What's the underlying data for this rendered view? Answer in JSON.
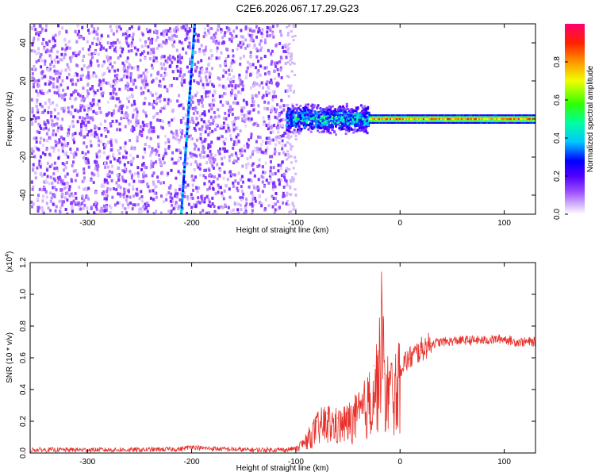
{
  "title": "C2E6.2026.067.17.29.G23",
  "chart_data": [
    {
      "type": "heatmap",
      "name": "spectrogram",
      "xlabel": "Height of straight line (km)",
      "ylabel": "Frequency (Hz)",
      "xlim": [
        -355,
        130
      ],
      "ylim": [
        -50,
        50
      ],
      "x_ticks": [
        -300,
        -200,
        -100,
        0,
        100
      ],
      "x_tick_labels": [
        "-300",
        "-200",
        "-100",
        "0",
        "100"
      ],
      "y_ticks": [
        -40,
        -20,
        0,
        20,
        40
      ],
      "y_tick_labels": [
        "-40",
        "-20",
        "0",
        "20",
        "40"
      ],
      "colorbar": {
        "label": "Normalized spectral amplitude",
        "range": [
          0,
          1
        ],
        "ticks": [
          0.0,
          0.2,
          0.4,
          0.6,
          0.8
        ],
        "tick_labels": [
          "0.0",
          "0.2",
          "0.4",
          "0.6",
          "0.8"
        ]
      },
      "regions": [
        {
          "kind": "noise",
          "x_range": [
            -355,
            -110
          ],
          "freq_range": [
            -50,
            50
          ],
          "amplitude": 0.12
        },
        {
          "kind": "diagonal-streak",
          "x_start": -210,
          "x_end": -197,
          "freq_start": -50,
          "freq_end": 50,
          "amplitude": 0.3
        },
        {
          "kind": "tone-band",
          "x_range": [
            -110,
            -30
          ],
          "center_freq": 0,
          "halfwidth_hz": 6,
          "amplitude": 0.4
        },
        {
          "kind": "tone-line",
          "x_range": [
            -30,
            130
          ],
          "center_freq": 0,
          "halfwidth_hz": 2,
          "amplitude": 0.85
        }
      ],
      "grid": false
    },
    {
      "type": "line",
      "name": "snr",
      "xlabel": "Height of straight line (km)",
      "ylabel": "SNR (10 * v/v)",
      "y_scale_label": "(x10",
      "y_scale_exp": "4",
      "xlim": [
        -355,
        130
      ],
      "ylim": [
        0,
        1.2
      ],
      "x_ticks": [
        -300,
        -200,
        -100,
        0,
        100
      ],
      "x_tick_labels": [
        "-300",
        "-200",
        "-100",
        "0",
        "100"
      ],
      "y_ticks": [
        0.0,
        0.2,
        0.4,
        0.6,
        0.8,
        1.0,
        1.2
      ],
      "y_tick_labels": [
        "0.0",
        "0.2",
        "0.4",
        "0.6",
        "0.8",
        "1.0",
        "1.2"
      ],
      "series": [
        {
          "color": "#e8302a",
          "x": [
            -355,
            -300,
            -250,
            -210,
            -200,
            -190,
            -150,
            -110,
            -100,
            -90,
            -80,
            -70,
            -60,
            -50,
            -40,
            -30,
            -25,
            -20,
            -18,
            -15,
            -10,
            -5,
            0,
            10,
            20,
            30,
            40,
            60,
            80,
            100,
            110,
            130
          ],
          "y": [
            0.02,
            0.02,
            0.02,
            0.025,
            0.04,
            0.03,
            0.02,
            0.02,
            0.03,
            0.1,
            0.2,
            0.25,
            0.22,
            0.25,
            0.3,
            0.4,
            0.55,
            0.6,
            1.2,
            0.5,
            0.5,
            0.5,
            0.55,
            0.6,
            0.65,
            0.69,
            0.7,
            0.71,
            0.71,
            0.72,
            0.7,
            0.7
          ]
        }
      ],
      "grid": false
    }
  ]
}
